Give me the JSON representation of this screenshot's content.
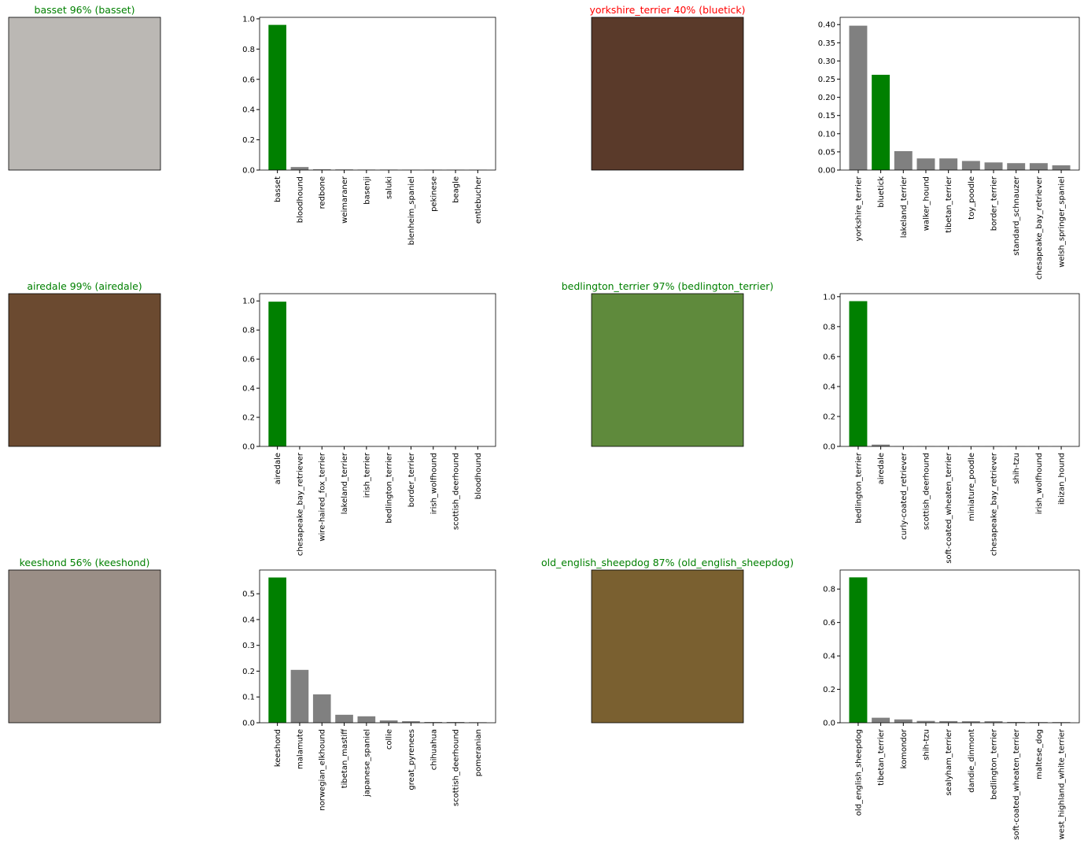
{
  "chart_data": [
    {
      "type": "bar",
      "image_title": "basset 96% (basset)",
      "title_color": "green",
      "categories": [
        "basset",
        "bloodhound",
        "redbone",
        "weimaraner",
        "basenji",
        "saluki",
        "blenheim_spaniel",
        "pekinese",
        "beagle",
        "entlebucher"
      ],
      "values": [
        0.96,
        0.02,
        0.005,
        0.004,
        0.003,
        0.003,
        0.002,
        0.002,
        0.002,
        0.002
      ],
      "colors": [
        "green",
        "grey",
        "grey",
        "grey",
        "grey",
        "grey",
        "grey",
        "grey",
        "grey",
        "grey"
      ],
      "ylim": [
        0,
        1.01
      ],
      "yticks": [
        {
          "value": 0,
          "label": "0.0"
        },
        0.2,
        0.4,
        0.6,
        0.8,
        {
          "value": 1,
          "label": "1.0"
        }
      ]
    },
    {
      "type": "bar",
      "image_title": "yorkshire_terrier 40% (bluetick)",
      "title_color": "red",
      "categories": [
        "yorkshire_terrier",
        "bluetick",
        "lakeland_terrier",
        "walker_hound",
        "tibetan_terrier",
        "toy_poodle",
        "border_terrier",
        "standard_schnauzer",
        "chesapeake_bay_retriever",
        "welsh_springer_spaniel"
      ],
      "values": [
        0.397,
        0.262,
        0.052,
        0.032,
        0.032,
        0.025,
        0.021,
        0.019,
        0.019,
        0.013
      ],
      "colors": [
        "grey",
        "green",
        "grey",
        "grey",
        "grey",
        "grey",
        "grey",
        "grey",
        "grey",
        "grey"
      ],
      "ylim": [
        0,
        0.42
      ],
      "yticks": [
        {
          "value": 0,
          "label": "0.00"
        },
        0.05,
        {
          "value": 0.1,
          "label": "0.10"
        },
        0.15,
        {
          "value": 0.2,
          "label": "0.20"
        },
        0.25,
        {
          "value": 0.3,
          "label": "0.30"
        },
        0.35,
        {
          "value": 0.4,
          "label": "0.40"
        }
      ]
    },
    {
      "type": "bar",
      "image_title": "airedale 99% (airedale)",
      "title_color": "green",
      "categories": [
        "airedale",
        "chesapeake_bay_retriever",
        "wire-haired_fox_terrier",
        "lakeland_terrier",
        "irish_terrier",
        "bedlington_terrier",
        "border_terrier",
        "irish_wolfhound",
        "scottish_deerhound",
        "bloodhound"
      ],
      "values": [
        0.995,
        0.0005,
        0.0005,
        0.0005,
        0.0005,
        0.0005,
        0.0005,
        0.0005,
        0.0005,
        0.0005
      ],
      "colors": [
        "green",
        "grey",
        "grey",
        "grey",
        "grey",
        "grey",
        "grey",
        "grey",
        "grey",
        "grey"
      ],
      "ylim": [
        0,
        1.05
      ],
      "yticks": [
        {
          "value": 0,
          "label": "0.0"
        },
        0.2,
        0.4,
        0.6,
        0.8,
        {
          "value": 1,
          "label": "1.0"
        }
      ]
    },
    {
      "type": "bar",
      "image_title": "bedlington_terrier 97% (bedlington_terrier)",
      "title_color": "green",
      "categories": [
        "bedlington_terrier",
        "airedale",
        "curly-coated_retriever",
        "scottish_deerhound",
        "soft-coated_wheaten_terrier",
        "miniature_poodle",
        "chesapeake_bay_retriever",
        "shih-tzu",
        "irish_wolfhound",
        "ibizan_hound"
      ],
      "values": [
        0.97,
        0.012,
        0.001,
        0.001,
        0.001,
        0.001,
        0.001,
        0.001,
        0.001,
        0.001
      ],
      "colors": [
        "green",
        "grey",
        "grey",
        "grey",
        "grey",
        "grey",
        "grey",
        "grey",
        "grey",
        "grey"
      ],
      "ylim": [
        0,
        1.02
      ],
      "yticks": [
        {
          "value": 0,
          "label": "0.0"
        },
        0.2,
        0.4,
        0.6,
        0.8,
        {
          "value": 1,
          "label": "1.0"
        }
      ]
    },
    {
      "type": "bar",
      "image_title": "keeshond 56% (keeshond)",
      "title_color": "green",
      "categories": [
        "keeshond",
        "malamute",
        "norwegian_elkhound",
        "tibetan_mastiff",
        "japanese_spaniel",
        "collie",
        "great_pyrenees",
        "chihuahua",
        "scottish_deerhound",
        "pomeranian"
      ],
      "values": [
        0.563,
        0.205,
        0.11,
        0.031,
        0.025,
        0.009,
        0.006,
        0.003,
        0.003,
        0.002
      ],
      "colors": [
        "green",
        "grey",
        "grey",
        "grey",
        "grey",
        "grey",
        "grey",
        "grey",
        "grey",
        "grey"
      ],
      "ylim": [
        0,
        0.592
      ],
      "yticks": [
        {
          "value": 0,
          "label": "0.0"
        },
        0.1,
        0.2,
        0.3,
        0.4,
        0.5
      ]
    },
    {
      "type": "bar",
      "image_title": "old_english_sheepdog 87% (old_english_sheepdog)",
      "title_color": "green",
      "categories": [
        "old_english_sheepdog",
        "tibetan_terrier",
        "komondor",
        "shih-tzu",
        "sealyham_terrier",
        "dandie_dinmont",
        "bedlington_terrier",
        "soft-coated_wheaten_terrier",
        "maltese_dog",
        "west_highland_white_terrier"
      ],
      "values": [
        0.87,
        0.03,
        0.02,
        0.011,
        0.01,
        0.009,
        0.009,
        0.005,
        0.004,
        0.004
      ],
      "colors": [
        "green",
        "grey",
        "grey",
        "grey",
        "grey",
        "grey",
        "grey",
        "grey",
        "grey",
        "grey"
      ],
      "ylim": [
        0,
        0.914
      ],
      "yticks": [
        {
          "value": 0,
          "label": "0.0"
        },
        0.2,
        0.4,
        0.6,
        0.8
      ]
    }
  ]
}
